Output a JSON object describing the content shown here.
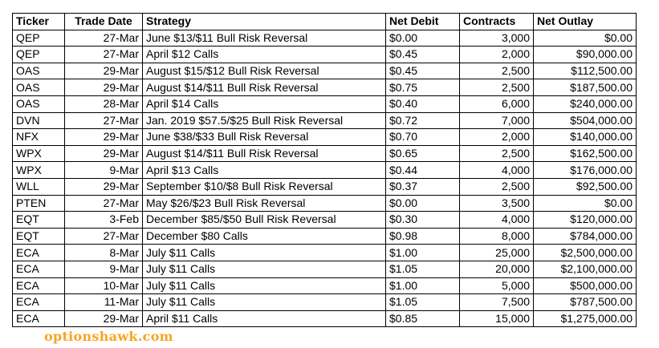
{
  "table": {
    "headers": [
      "Ticker",
      "Trade Date",
      "Strategy",
      "Net Debit",
      "Contracts",
      "Net Outlay"
    ],
    "rows": [
      [
        "QEP",
        "27-Mar",
        "June $13/$11 Bull Risk Reversal",
        "$0.00",
        "3,000",
        "$0.00"
      ],
      [
        "QEP",
        "27-Mar",
        "April $12 Calls",
        "$0.45",
        "2,000",
        "$90,000.00"
      ],
      [
        "OAS",
        "29-Mar",
        "August $15/$12 Bull Risk Reversal",
        "$0.45",
        "2,500",
        "$112,500.00"
      ],
      [
        "OAS",
        "29-Mar",
        "August $14/$11 Bull Risk Reversal",
        "$0.75",
        "2,500",
        "$187,500.00"
      ],
      [
        "OAS",
        "28-Mar",
        "April $14 Calls",
        "$0.40",
        "6,000",
        "$240,000.00"
      ],
      [
        "DVN",
        "27-Mar",
        "Jan. 2019 $57.5/$25 Bull Risk Reversal",
        "$0.72",
        "7,000",
        "$504,000.00"
      ],
      [
        "NFX",
        "29-Mar",
        "June $38/$33 Bull Risk Reversal",
        "$0.70",
        "2,000",
        "$140,000.00"
      ],
      [
        "WPX",
        "29-Mar",
        "August $14/$11 Bull Risk Reversal",
        "$0.65",
        "2,500",
        "$162,500.00"
      ],
      [
        "WPX",
        "9-Mar",
        "April $13 Calls",
        "$0.44",
        "4,000",
        "$176,000.00"
      ],
      [
        "WLL",
        "29-Mar",
        "September $10/$8 Bull Risk Reversal",
        "$0.37",
        "2,500",
        "$92,500.00"
      ],
      [
        "PTEN",
        "27-Mar",
        "May $26/$23 Bull Risk Reversal",
        "$0.00",
        "3,500",
        "$0.00"
      ],
      [
        "EQT",
        "3-Feb",
        "December $85/$50 Bull Risk Reversal",
        "$0.30",
        "4,000",
        "$120,000.00"
      ],
      [
        "EQT",
        "27-Mar",
        "December $80 Calls",
        "$0.98",
        "8,000",
        "$784,000.00"
      ],
      [
        "ECA",
        "8-Mar",
        "July $11 Calls",
        "$1.00",
        "25,000",
        "$2,500,000.00"
      ],
      [
        "ECA",
        "9-Mar",
        "July $11 Calls",
        "$1.05",
        "20,000",
        "$2,100,000.00"
      ],
      [
        "ECA",
        "10-Mar",
        "July $11 Calls",
        "$1.00",
        "5,000",
        "$500,000.00"
      ],
      [
        "ECA",
        "11-Mar",
        "July $11 Calls",
        "$1.05",
        "7,500",
        "$787,500.00"
      ],
      [
        "ECA",
        "29-Mar",
        "April $11 Calls",
        "$0.85",
        "15,000",
        "$1,275,000.00"
      ]
    ]
  },
  "watermark": "optionshawk.com",
  "colors": {
    "watermark": "#f5a623",
    "border": "#000000",
    "background": "#ffffff"
  }
}
